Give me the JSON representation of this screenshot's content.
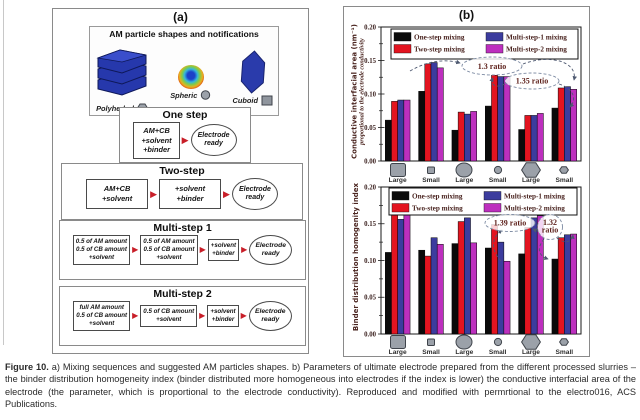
{
  "panel_a": {
    "label": "(a)",
    "shapes_title": "AM particle shapes and notifications",
    "shapes": [
      {
        "name": "Polyhedral",
        "icon": "hexagon-icon"
      },
      {
        "name": "Spheric",
        "icon": "circle-icon"
      },
      {
        "name": "Cuboid",
        "icon": "square-icon"
      }
    ],
    "flows": [
      {
        "title": "One step",
        "boxes": [
          [
            "AM+CB",
            "+solvent",
            "+binder"
          ]
        ],
        "result": "Electrode ready"
      },
      {
        "title": "Two-step",
        "boxes": [
          [
            "AM+CB",
            "+solvent"
          ],
          [
            "+solvent",
            "+binder"
          ]
        ],
        "result": "Electrode ready"
      },
      {
        "title": "Multi-step 1",
        "boxes": [
          [
            "0.5 of AM amount",
            "0.5 of CB amount",
            "+solvent"
          ],
          [
            "0.5 of AM amount",
            "0.5 of CB amount",
            "+solvent"
          ],
          [
            "+solvent",
            "+binder"
          ]
        ],
        "result": "Electrode ready"
      },
      {
        "title": "Multi-step 2",
        "boxes": [
          [
            "full AM amount",
            "0.5 of CB amount",
            "+solvent"
          ],
          [
            "0.5 of CB amount",
            "+solvent"
          ],
          [
            "+solvent",
            "+binder"
          ]
        ],
        "result": "Electrode ready"
      }
    ],
    "arrow_glyph": "▶"
  },
  "panel_b": {
    "label": "(b)",
    "x_groups": [
      {
        "shape": "square",
        "size": "large",
        "label": "Large"
      },
      {
        "shape": "square",
        "size": "small",
        "label": "Small"
      },
      {
        "shape": "circle",
        "size": "large",
        "label": "Large"
      },
      {
        "shape": "circle",
        "size": "small",
        "label": "Small"
      },
      {
        "shape": "hexagon",
        "size": "large",
        "label": "Large"
      },
      {
        "shape": "hexagon",
        "size": "small",
        "label": "Small"
      }
    ]
  },
  "chart_data": [
    {
      "type": "bar",
      "title": "",
      "ylabel": "Conductive interfacial area (nm⁻¹)",
      "ylabel_sub": "proportional to the electrode conductivity",
      "ylim": [
        0,
        0.2
      ],
      "yticks": [
        "0.00",
        "0.05",
        "0.10",
        "0.15",
        "0.20"
      ],
      "grid": false,
      "legend_position": "top-inside",
      "categories": [
        "square-large",
        "square-small",
        "circle-large",
        "circle-small",
        "hexagon-large",
        "hexagon-small"
      ],
      "series": [
        {
          "name": "One-step mixing",
          "color": "#0a0a0a",
          "values": [
            0.061,
            0.104,
            0.046,
            0.082,
            0.047,
            0.079
          ]
        },
        {
          "name": "Two-step mixing",
          "color": "#e31420",
          "values": [
            0.089,
            0.145,
            0.073,
            0.128,
            0.068,
            0.109
          ]
        },
        {
          "name": "Multi-step-1 mixing",
          "color": "#3c3c9e",
          "values": [
            0.091,
            0.147,
            0.07,
            0.126,
            0.068,
            0.111
          ]
        },
        {
          "name": "Multi-step-2 mixing",
          "color": "#bd2fbe",
          "values": [
            0.091,
            0.139,
            0.074,
            0.126,
            0.071,
            0.107
          ]
        }
      ],
      "annotations": [
        {
          "text": "1.3 ratio"
        },
        {
          "text": "1.35 ratio"
        }
      ]
    },
    {
      "type": "bar",
      "title": "",
      "ylabel": "Binder distribution homogenity index",
      "ylabel_sub": "",
      "ylim": [
        0,
        0.2
      ],
      "yticks": [
        "0.00",
        "0.05",
        "0.10",
        "0.15",
        "0.20"
      ],
      "grid": false,
      "legend_position": "top-inside",
      "categories": [
        "square-large",
        "square-small",
        "circle-large",
        "circle-small",
        "hexagon-large",
        "hexagon-small"
      ],
      "series": [
        {
          "name": "One-step mixing",
          "color": "#0a0a0a",
          "values": [
            0.111,
            0.114,
            0.123,
            0.117,
            0.109,
            0.102
          ]
        },
        {
          "name": "Two-step mixing",
          "color": "#e31420",
          "values": [
            0.178,
            0.106,
            0.153,
            0.149,
            0.145,
            0.131
          ]
        },
        {
          "name": "Multi-step-1 mixing",
          "color": "#3c3c9e",
          "values": [
            0.156,
            0.131,
            0.158,
            0.125,
            0.158,
            0.135
          ]
        },
        {
          "name": "Multi-step-2 mixing",
          "color": "#bd2fbe",
          "values": [
            0.168,
            0.122,
            0.124,
            0.099,
            0.161,
            0.136
          ]
        }
      ],
      "annotations": [
        {
          "text": "1.39 ratio"
        },
        {
          "text": "1.32 ratio"
        }
      ]
    }
  ],
  "caption": {
    "label": "Figure 10.",
    "text": "a) Mixing sequences and suggested AM particles shapes. b) Parameters of ultimate electrode prepared from the different processed slurries – the binder distribution homogeneity index (binder distributed more homogeneous into electrodes if the index is lower) the conductive interfacial area of the electrode (the parameter, which is proportional to the electrode conductivity). Reproduced and modified with permrtional to the electro016, ACS Publications."
  }
}
